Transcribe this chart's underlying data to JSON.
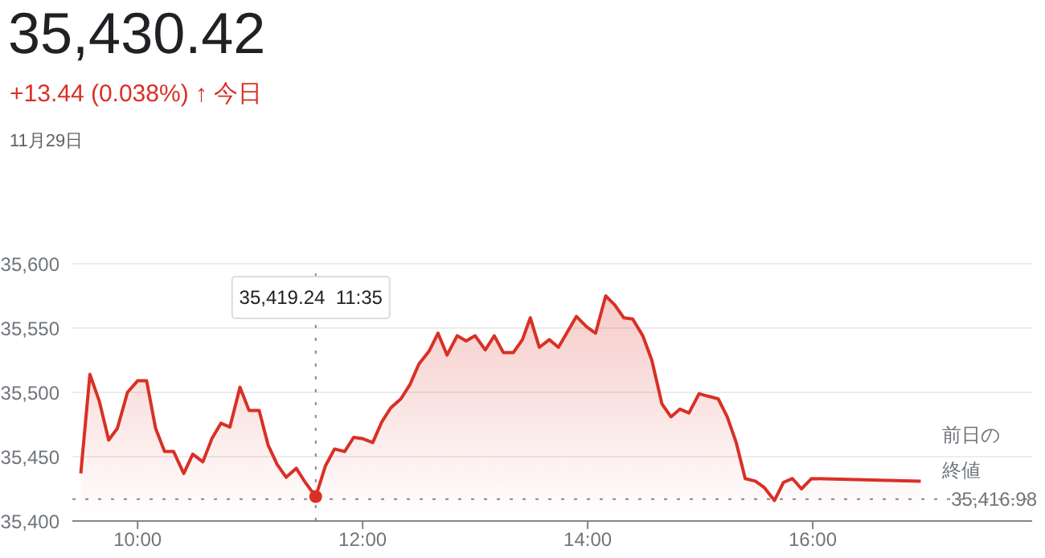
{
  "chart_data": {
    "type": "area",
    "title": "35,430.42",
    "subtitle": "+13.44 (0.038%) ↑ 今日",
    "annotations": [
      "11月29日",
      "35,419.24  11:35",
      "35,416.98"
    ],
    "series": [
      {
        "color": "#d93025",
        "x": [
          9.495,
          9.576,
          9.66,
          9.743,
          9.82,
          9.91,
          10.0,
          10.08,
          10.16,
          10.24,
          10.32,
          10.41,
          10.49,
          10.58,
          10.66,
          10.74,
          10.82,
          10.91,
          10.99,
          11.08,
          11.16,
          11.24,
          11.32,
          11.41,
          11.49,
          11.583,
          11.67,
          11.75,
          11.84,
          11.92,
          12.0,
          12.09,
          12.17,
          12.25,
          12.34,
          12.42,
          12.5,
          12.59,
          12.67,
          12.75,
          12.84,
          12.92,
          13.0,
          13.09,
          13.17,
          13.25,
          13.34,
          13.42,
          13.49,
          13.57,
          13.66,
          13.74,
          13.82,
          13.9,
          13.99,
          14.07,
          14.16,
          14.24,
          14.32,
          14.4,
          14.49,
          14.57,
          14.66,
          14.74,
          14.82,
          14.9,
          14.99,
          15.07,
          15.16,
          15.24,
          15.32,
          15.4,
          15.49,
          15.57,
          15.66,
          15.74,
          15.82,
          15.9,
          15.99,
          16.96
        ],
        "values": [
          35437,
          35514,
          35493,
          35463,
          35472,
          35500,
          35509,
          35509,
          35472,
          35454,
          35454,
          35437,
          35452,
          35446,
          35464,
          35476,
          35473,
          35504,
          35486,
          35486,
          35459,
          35444,
          35434,
          35441,
          35430,
          35419,
          35443,
          35456,
          35454,
          35465,
          35464,
          35461,
          35477,
          35488,
          35495,
          35506,
          35522,
          35532,
          35546,
          35529,
          35544,
          35540,
          35544,
          35533,
          35544,
          35531,
          35531,
          35541,
          35558,
          35535,
          35541,
          35535,
          35547,
          35559,
          35551,
          35546,
          35575,
          35568,
          35558,
          35557,
          35544,
          35525,
          35491,
          35481,
          35487,
          35484,
          35499,
          35497,
          35495,
          35481,
          35461,
          35433,
          35431,
          35426,
          35416,
          35430,
          35433,
          35425,
          35433,
          35431
        ]
      }
    ],
    "xlim": [
      9.42,
      17.95
    ],
    "xticks": [
      {
        "value": 10,
        "label": "10:00"
      },
      {
        "value": 12,
        "label": "12:00"
      },
      {
        "value": 14,
        "label": "14:00"
      },
      {
        "value": 16,
        "label": "16:00"
      }
    ],
    "ylim": [
      35400,
      35600
    ],
    "yticks": [
      {
        "value": 35400,
        "label": "35,400"
      },
      {
        "value": 35450,
        "label": "35,450"
      },
      {
        "value": 35500,
        "label": "35,500"
      },
      {
        "value": 35550,
        "label": "35,550"
      },
      {
        "value": 35600,
        "label": "35,600"
      }
    ],
    "grid": "y",
    "legend": false,
    "marker": "none",
    "line_style": "solid",
    "ref_lines": [
      {
        "axis": "y",
        "value": 35416.98,
        "label": "前日の終値",
        "line_style": "dotted",
        "color": "#888888"
      },
      {
        "axis": "x",
        "value": 11.583,
        "label": null,
        "line_style": "dotted",
        "color": "#888888"
      }
    ]
  }
}
